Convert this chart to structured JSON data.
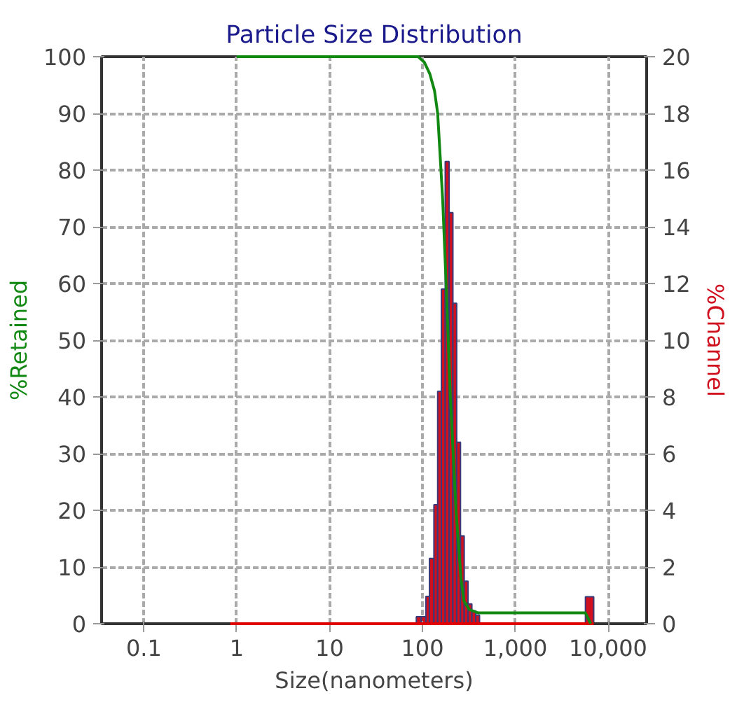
{
  "chart_data": {
    "type": "histogram",
    "title": "Particle Size Distribution",
    "xlabel": "Size(nanometers)",
    "ylabel": "%Retained",
    "y2label": "%Channel",
    "log": "x",
    "grid": true,
    "xlim": [
      0.035,
      26000
    ],
    "xticks": [
      0.1,
      1,
      10,
      100,
      {
        "value": 1000,
        "label": "1,000"
      },
      {
        "value": 10000,
        "label": "10,000"
      }
    ],
    "ylim": [
      0,
      100
    ],
    "yticks": [
      0,
      10,
      20,
      30,
      40,
      50,
      60,
      70,
      80,
      90,
      100
    ],
    "y2lim": [
      0,
      20
    ],
    "y2ticks": [
      0,
      2,
      4,
      6,
      8,
      10,
      12,
      14,
      16,
      18,
      20
    ],
    "series": [
      {
        "axis": "y2",
        "color": "#d0101e",
        "bins": [
          86,
          97,
          109,
          119,
          133,
          146,
          160,
          176,
          194,
          213,
          234,
          257,
          282,
          310,
          341,
          375,
          412
        ],
        "values": [
          0.25,
          0.25,
          0.96,
          2.3,
          4.2,
          8.2,
          11.8,
          16.3,
          14.5,
          11.3,
          6.4,
          3.1,
          1.5,
          0.7,
          0.45,
          0.3
        ]
      },
      {
        "axis": "y2",
        "color": "#d0101e",
        "bins": [
          5700,
          7000
        ],
        "values": [
          0.95
        ]
      },
      {
        "type": "line",
        "axis": "y2",
        "color": "#e00000",
        "x": [
          0.85,
          7000
        ],
        "values": [
          0,
          0
        ]
      },
      {
        "type": "line",
        "color": "#118811",
        "x": [
          1,
          90,
          105,
          120,
          135,
          146,
          165,
          180,
          200,
          230,
          260,
          280,
          320,
          400,
          5700,
          6500
        ],
        "values": [
          100,
          100,
          99,
          97,
          94,
          90,
          75,
          60,
          40,
          20,
          8,
          4,
          2.5,
          1.9,
          1.9,
          0
        ]
      }
    ]
  }
}
